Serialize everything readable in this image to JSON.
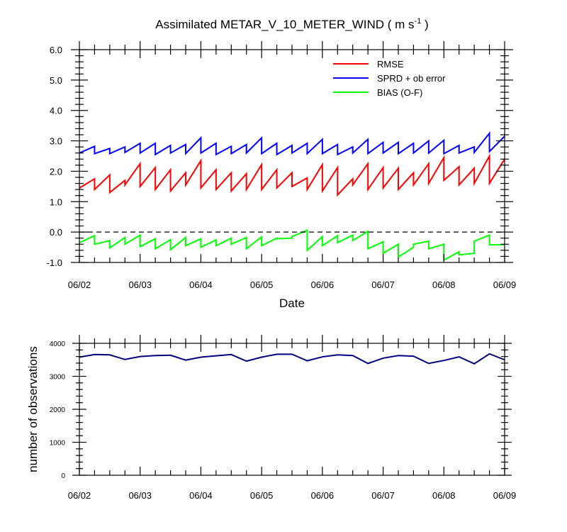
{
  "title": "Assimilated METAR_V_10_METER_WIND ( m s",
  "title_sup": "-1",
  "title_end": " )",
  "top_chart": {
    "xlabel": "Date",
    "ylim": [
      -1.0,
      6.0
    ],
    "ytick_labels": [
      "-1.0",
      "0.0",
      "1.0",
      "2.0",
      "3.0",
      "4.0",
      "5.0",
      "6.0"
    ],
    "xtick_labels": [
      "06/02",
      "06/03",
      "06/04",
      "06/05",
      "06/06",
      "06/07",
      "06/08",
      "06/09"
    ],
    "legend_placement": "top-right",
    "legend": [
      "RMSE",
      "SPRD + ob error",
      "BIAS (O-F)"
    ]
  },
  "bottom_chart": {
    "ylabel": "number of observations",
    "ytick_labels": [
      "0",
      "1000",
      "2000",
      "3000",
      "4000"
    ],
    "xtick_labels": [
      "06/02",
      "06/03",
      "06/04",
      "06/05",
      "06/06",
      "06/07",
      "06/08",
      "06/09"
    ]
  },
  "chart_data": [
    {
      "type": "line",
      "x_range": [
        "06/02",
        "06/09"
      ],
      "x": [
        0,
        0.25,
        0.5,
        0.75,
        1,
        1.25,
        1.5,
        1.75,
        2,
        2.25,
        2.5,
        2.75,
        3,
        3.25,
        3.5,
        3.75,
        4,
        4.25,
        4.5,
        4.75,
        5,
        5.25,
        5.5,
        5.75,
        6,
        6.25,
        6.5,
        6.75,
        7
      ],
      "ylim": [
        -1.0,
        6.0
      ],
      "grid": false,
      "reference_line": 0.0,
      "series": [
        {
          "name": "RMSE",
          "color": "#ff0000",
          "sawtooth": true,
          "low": [
            1.45,
            1.4,
            1.3,
            1.55,
            1.5,
            1.4,
            1.35,
            1.55,
            1.45,
            1.4,
            1.35,
            1.4,
            1.4,
            1.45,
            1.5,
            1.4,
            1.35,
            1.22,
            1.55,
            1.4,
            1.45,
            1.4,
            1.55,
            1.6,
            1.7,
            1.55,
            1.6,
            1.6
          ],
          "high": [
            1.75,
            1.88,
            1.7,
            2.25,
            2.12,
            2.05,
            1.95,
            2.35,
            2.05,
            1.95,
            1.92,
            2.22,
            2.05,
            1.95,
            1.78,
            2.22,
            2.12,
            1.75,
            2.25,
            2.12,
            2.1,
            1.95,
            2.25,
            2.45,
            2.15,
            2.1,
            2.5,
            2.4
          ]
        },
        {
          "name": "SPRD + ob error",
          "color": "#0000ff",
          "sawtooth": true,
          "low": [
            2.6,
            2.58,
            2.58,
            2.62,
            2.6,
            2.55,
            2.6,
            2.58,
            2.6,
            2.55,
            2.58,
            2.6,
            2.58,
            2.55,
            2.6,
            2.58,
            2.58,
            2.55,
            2.6,
            2.58,
            2.6,
            2.58,
            2.6,
            2.6,
            2.58,
            2.6,
            2.62,
            2.65
          ],
          "high": [
            2.82,
            2.75,
            2.8,
            2.92,
            2.92,
            2.85,
            2.88,
            3.1,
            2.92,
            2.82,
            2.88,
            3.1,
            2.92,
            2.85,
            2.92,
            3.05,
            2.88,
            2.8,
            3.05,
            2.95,
            2.95,
            2.92,
            3.0,
            3.02,
            2.85,
            2.8,
            3.25,
            3.15
          ]
        },
        {
          "name": "BIAS (O-F)",
          "color": "#00ff00",
          "sawtooth": true,
          "low": [
            -0.35,
            -0.4,
            -0.52,
            -0.4,
            -0.48,
            -0.55,
            -0.58,
            -0.45,
            -0.5,
            -0.45,
            -0.4,
            -0.55,
            -0.45,
            -0.22,
            -0.15,
            -0.6,
            -0.45,
            -0.35,
            -0.28,
            -0.55,
            -0.7,
            -0.82,
            -0.4,
            -0.55,
            -0.92,
            -0.75,
            -0.3,
            -0.42
          ],
          "high": [
            -0.12,
            -0.28,
            -0.18,
            -0.1,
            -0.22,
            -0.25,
            -0.18,
            -0.22,
            -0.26,
            -0.2,
            -0.18,
            -0.16,
            -0.2,
            -0.2,
            0.06,
            -0.15,
            -0.12,
            -0.1,
            0.02,
            -0.32,
            -0.4,
            -0.5,
            -0.3,
            -0.4,
            -0.65,
            -0.7,
            -0.1,
            -0.42
          ]
        }
      ]
    },
    {
      "type": "line",
      "x_range": [
        "06/02",
        "06/09"
      ],
      "ylabel": "number of observations",
      "ylim": [
        0,
        4000
      ],
      "grid": false,
      "series": [
        {
          "color": "#000080",
          "x": [
            0,
            0.25,
            0.5,
            0.75,
            1,
            1.25,
            1.5,
            1.75,
            2,
            2.25,
            2.5,
            2.75,
            3,
            3.25,
            3.5,
            3.75,
            4,
            4.25,
            4.5,
            4.75,
            5,
            5.25,
            5.5,
            5.75,
            6,
            6.25,
            6.5,
            6.75,
            7
          ],
          "values": [
            3580,
            3660,
            3650,
            3510,
            3600,
            3630,
            3640,
            3490,
            3580,
            3620,
            3660,
            3460,
            3580,
            3670,
            3670,
            3470,
            3590,
            3650,
            3630,
            3390,
            3550,
            3630,
            3610,
            3390,
            3480,
            3590,
            3380,
            3680,
            3500
          ]
        }
      ]
    }
  ]
}
